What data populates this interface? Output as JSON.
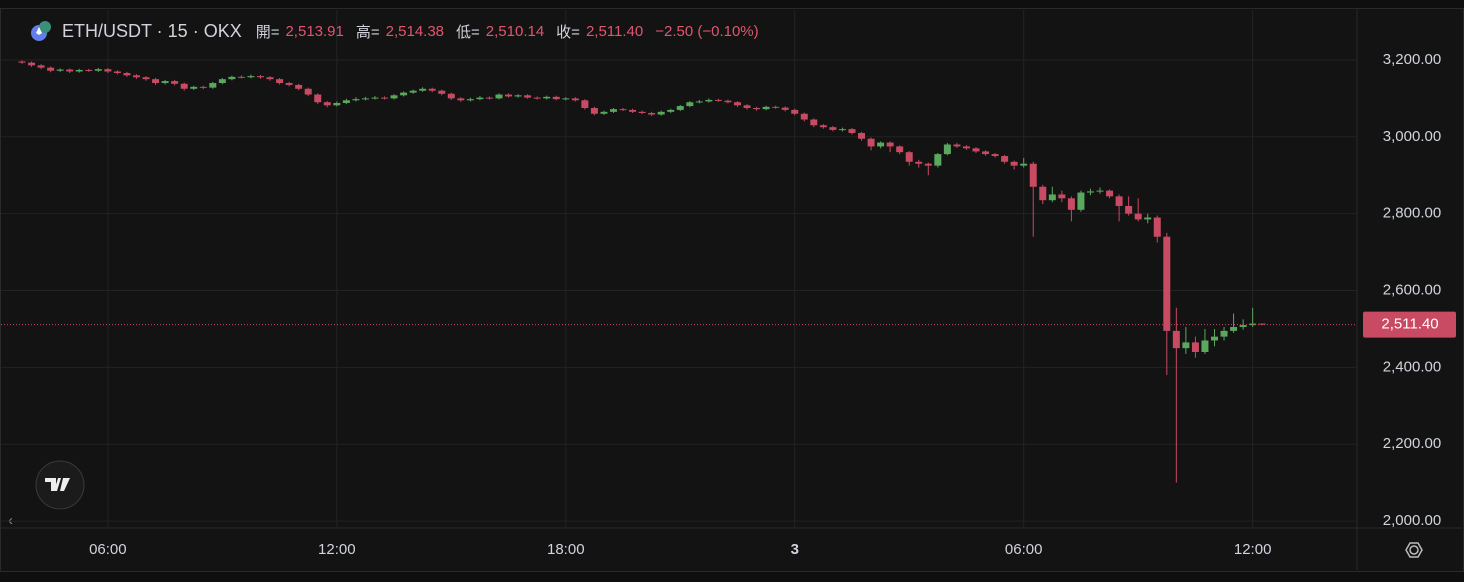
{
  "header": {
    "symbol": "ETH/USDT · 15 · OKX",
    "ohlc": [
      {
        "label": "開=",
        "value": "2,513.91"
      },
      {
        "label": "高=",
        "value": "2,514.38"
      },
      {
        "label": "低=",
        "value": "2,510.14"
      },
      {
        "label": "收=",
        "value": "2,511.40"
      }
    ],
    "change": "−2.50 (−0.10%)"
  },
  "chart_data": {
    "type": "candlestick",
    "categories": [
      null,
      null,
      null,
      null,
      null,
      null,
      null,
      null,
      null,
      "06:00",
      null,
      null,
      null,
      null,
      null,
      null,
      null,
      null,
      null,
      null,
      null,
      null,
      null,
      null,
      null,
      null,
      null,
      null,
      null,
      null,
      null,
      null,
      null,
      "12:00",
      null,
      null,
      null,
      null,
      null,
      null,
      null,
      null,
      null,
      null,
      null,
      null,
      null,
      null,
      null,
      null,
      null,
      null,
      null,
      null,
      null,
      null,
      null,
      "18:00",
      null,
      null,
      null,
      null,
      null,
      null,
      null,
      null,
      null,
      null,
      null,
      null,
      null,
      null,
      null,
      null,
      null,
      null,
      null,
      null,
      null,
      null,
      null,
      "3",
      null,
      null,
      null,
      null,
      null,
      null,
      null,
      null,
      null,
      null,
      null,
      null,
      null,
      null,
      null,
      null,
      null,
      null,
      null,
      null,
      null,
      null,
      null,
      "06:00",
      null,
      null,
      null,
      null,
      null,
      null,
      null,
      null,
      null,
      null,
      null,
      null,
      null,
      null,
      null,
      null,
      null,
      null,
      null,
      null,
      null,
      null,
      null,
      "12:00",
      null
    ],
    "open": [
      3196,
      3193,
      3186,
      3180,
      3172,
      3175,
      3170,
      3174,
      3172,
      3176,
      3170,
      3166,
      3160,
      3155,
      3150,
      3140,
      3145,
      3138,
      3125,
      3130,
      3128,
      3140,
      3150,
      3156,
      3155,
      3158,
      3155,
      3150,
      3140,
      3135,
      3125,
      3110,
      3090,
      3082,
      3088,
      3095,
      3098,
      3100,
      3102,
      3100,
      3108,
      3115,
      3120,
      3125,
      3120,
      3112,
      3100,
      3095,
      3098,
      3102,
      3100,
      3110,
      3105,
      3108,
      3102,
      3100,
      3104,
      3098,
      3100,
      3095,
      3075,
      3060,
      3065,
      3072,
      3070,
      3065,
      3062,
      3058,
      3065,
      3070,
      3080,
      3090,
      3092,
      3096,
      3094,
      3090,
      3082,
      3075,
      3072,
      3078,
      3076,
      3070,
      3060,
      3045,
      3030,
      3025,
      3018,
      3020,
      3010,
      2995,
      2975,
      2985,
      2975,
      2960,
      2935,
      2930,
      2925,
      2955,
      2980,
      2975,
      2970,
      2962,
      2955,
      2950,
      2935,
      2925,
      2930,
      2870,
      2835,
      2850,
      2840,
      2810,
      2855,
      2858,
      2860,
      2845,
      2820,
      2800,
      2785,
      2790,
      2740,
      2495,
      2450,
      2465,
      2440,
      2470,
      2480,
      2495,
      2505,
      2510,
      2513.91
    ],
    "high": [
      3199,
      3196,
      3189,
      3183,
      3178,
      3178,
      3177,
      3177,
      3179,
      3179,
      3173,
      3169,
      3163,
      3158,
      3153,
      3148,
      3148,
      3141,
      3133,
      3133,
      3143,
      3153,
      3159,
      3160,
      3162,
      3161,
      3158,
      3153,
      3143,
      3138,
      3128,
      3113,
      3093,
      3092,
      3099,
      3103,
      3104,
      3106,
      3105,
      3111,
      3118,
      3123,
      3129,
      3128,
      3123,
      3115,
      3103,
      3102,
      3106,
      3105,
      3113,
      3113,
      3111,
      3111,
      3105,
      3107,
      3107,
      3103,
      3103,
      3098,
      3078,
      3068,
      3075,
      3075,
      3073,
      3068,
      3065,
      3068,
      3073,
      3083,
      3093,
      3096,
      3100,
      3099,
      3097,
      3093,
      3085,
      3078,
      3081,
      3081,
      3079,
      3073,
      3063,
      3048,
      3033,
      3028,
      3024,
      3023,
      3013,
      2998,
      2988,
      2988,
      2978,
      2963,
      2940,
      2933,
      2958,
      2984,
      2984,
      2978,
      2973,
      2965,
      2958,
      2953,
      2938,
      2945,
      2935,
      2875,
      2870,
      2860,
      2845,
      2860,
      2865,
      2868,
      2863,
      2850,
      2845,
      2840,
      2800,
      2795,
      2750,
      2555,
      2505,
      2480,
      2500,
      2500,
      2505,
      2540,
      2525,
      2555,
      2514.38
    ],
    "low": [
      3190,
      3182,
      3176,
      3168,
      3169,
      3166,
      3167,
      3169,
      3169,
      3166,
      3162,
      3156,
      3151,
      3146,
      3135,
      3136,
      3134,
      3120,
      3122,
      3124,
      3125,
      3137,
      3147,
      3152,
      3152,
      3151,
      3146,
      3136,
      3131,
      3121,
      3106,
      3085,
      3077,
      3079,
      3085,
      3092,
      3095,
      3097,
      3097,
      3097,
      3105,
      3112,
      3117,
      3116,
      3108,
      3096,
      3091,
      3092,
      3095,
      3097,
      3097,
      3102,
      3102,
      3099,
      3097,
      3097,
      3095,
      3095,
      3092,
      3071,
      3056,
      3057,
      3062,
      3067,
      3062,
      3059,
      3054,
      3055,
      3062,
      3067,
      3077,
      3087,
      3089,
      3091,
      3087,
      3078,
      3071,
      3068,
      3069,
      3073,
      3066,
      3056,
      3040,
      3025,
      3021,
      3014,
      3014,
      3006,
      2990,
      2965,
      2970,
      2960,
      2955,
      2925,
      2920,
      2900,
      2920,
      2952,
      2971,
      2966,
      2958,
      2951,
      2946,
      2930,
      2915,
      2920,
      2740,
      2825,
      2830,
      2830,
      2780,
      2805,
      2848,
      2852,
      2840,
      2780,
      2795,
      2780,
      2775,
      2725,
      2380,
      2100,
      2435,
      2425,
      2435,
      2455,
      2470,
      2490,
      2498,
      2505,
      2510.14
    ],
    "close": [
      3193,
      3186,
      3180,
      3172,
      3175,
      3170,
      3174,
      3172,
      3176,
      3170,
      3166,
      3160,
      3155,
      3150,
      3140,
      3145,
      3138,
      3125,
      3130,
      3128,
      3140,
      3150,
      3156,
      3155,
      3158,
      3155,
      3150,
      3140,
      3135,
      3125,
      3110,
      3090,
      3082,
      3088,
      3095,
      3098,
      3100,
      3102,
      3100,
      3108,
      3115,
      3120,
      3125,
      3120,
      3112,
      3100,
      3095,
      3098,
      3102,
      3100,
      3110,
      3105,
      3108,
      3102,
      3100,
      3104,
      3098,
      3100,
      3095,
      3075,
      3060,
      3065,
      3072,
      3070,
      3065,
      3062,
      3058,
      3065,
      3070,
      3080,
      3090,
      3092,
      3096,
      3094,
      3090,
      3082,
      3075,
      3072,
      3078,
      3076,
      3070,
      3060,
      3045,
      3030,
      3025,
      3018,
      3020,
      3010,
      2995,
      2975,
      2985,
      2975,
      2960,
      2935,
      2930,
      2925,
      2955,
      2980,
      2975,
      2970,
      2962,
      2955,
      2950,
      2935,
      2925,
      2930,
      2870,
      2835,
      2850,
      2840,
      2810,
      2855,
      2858,
      2860,
      2845,
      2820,
      2800,
      2785,
      2790,
      2740,
      2495,
      2450,
      2465,
      2440,
      2470,
      2480,
      2495,
      2505,
      2510,
      2513.91,
      2511.4
    ],
    "up_color": "#5aa85e",
    "down_color": "#c94a63",
    "ylim": [
      1982,
      3330
    ],
    "yticks": [
      {
        "value": 2000,
        "label": "2,000.00"
      },
      {
        "value": 2200,
        "label": "2,200.00"
      },
      {
        "value": 2400,
        "label": "2,400.00"
      },
      {
        "value": 2600,
        "label": "2,600.00"
      },
      {
        "value": 2800,
        "label": "2,800.00"
      },
      {
        "value": 3000,
        "label": "3,000.00"
      },
      {
        "value": 3200,
        "label": "3,200.00"
      }
    ],
    "last_price": {
      "value": 2511.4,
      "label": "2,511.40"
    },
    "grid": true
  }
}
